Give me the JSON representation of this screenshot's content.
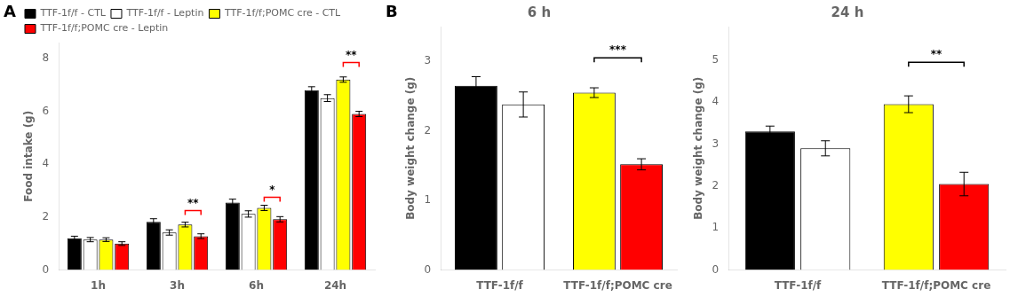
{
  "chart_data": [
    {
      "type": "bar",
      "panel_label": "A",
      "ylabel": "Food intake (g)",
      "categories": [
        "1h",
        "3h",
        "6h",
        "24h"
      ],
      "series": [
        {
          "name": "TTF-1f/f - CTL",
          "color": "#000000",
          "values": [
            1.2,
            1.82,
            2.55,
            6.8
          ],
          "errors": [
            0.08,
            0.12,
            0.13,
            0.13
          ]
        },
        {
          "name": "TTF-1f/f - Leptin",
          "color": "#ffffff",
          "values": [
            1.15,
            1.42,
            2.12,
            6.5
          ],
          "errors": [
            0.08,
            0.1,
            0.12,
            0.13
          ]
        },
        {
          "name": "TTF-1f/f;POMC cre - CTL",
          "color": "#ffff00",
          "values": [
            1.15,
            1.72,
            2.35,
            7.2
          ],
          "errors": [
            0.07,
            0.09,
            0.1,
            0.1
          ]
        },
        {
          "name": "TTF-1f/f;POMC cre - Leptin",
          "color": "#ff0000",
          "values": [
            1.0,
            1.28,
            1.92,
            5.9
          ],
          "errors": [
            0.07,
            0.09,
            0.1,
            0.1
          ]
        }
      ],
      "ylim": [
        0,
        8.6
      ],
      "yticks": [
        0,
        2,
        4,
        6,
        8
      ],
      "grid": false,
      "legend": "upper left",
      "annotations": [
        {
          "text": "**",
          "category": "3h",
          "between": [
            "TTF-1f/f;POMC cre - CTL",
            "TTF-1f/f;POMC cre - Leptin"
          ],
          "y": 2.25,
          "color": "#ff0000"
        },
        {
          "text": "*",
          "category": "6h",
          "between": [
            "TTF-1f/f;POMC cre - CTL",
            "TTF-1f/f;POMC cre - Leptin"
          ],
          "y": 2.75,
          "color": "#ff0000"
        },
        {
          "text": "**",
          "category": "24h",
          "between": [
            "TTF-1f/f;POMC cre - CTL",
            "TTF-1f/f;POMC cre - Leptin"
          ],
          "y": 7.85,
          "color": "#ff0000"
        }
      ]
    },
    {
      "type": "bar",
      "panel_label": "B",
      "title": "6 h",
      "ylabel": "Body weight change (g)",
      "categories": [
        "TTF-1f/f",
        "TTF-1f/f;POMC cre"
      ],
      "series": [
        {
          "colors": [
            "#000000",
            "#ffff00"
          ],
          "values": [
            2.65,
            2.55
          ],
          "errors": [
            0.13,
            0.07
          ]
        },
        {
          "colors": [
            "#ffffff",
            "#ff0000"
          ],
          "values": [
            2.38,
            1.52
          ],
          "errors": [
            0.18,
            0.08
          ]
        }
      ],
      "ylim": [
        0,
        3.5
      ],
      "yticks": [
        0,
        1,
        2,
        3
      ],
      "grid": false,
      "annotations": [
        {
          "text": "***",
          "category": "TTF-1f/f;POMC cre",
          "y": 3.05
        }
      ]
    },
    {
      "type": "bar",
      "title": "24 h",
      "ylabel": "Body weight change (g)",
      "categories": [
        "TTF-1f/f",
        "TTF-1f/f;POMC cre"
      ],
      "series": [
        {
          "colors": [
            "#000000",
            "#ffff00"
          ],
          "values": [
            3.3,
            3.95
          ],
          "errors": [
            0.13,
            0.2
          ]
        },
        {
          "colors": [
            "#ffffff",
            "#ff0000"
          ],
          "values": [
            2.9,
            2.05
          ],
          "errors": [
            0.18,
            0.28
          ]
        }
      ],
      "ylim": [
        0,
        5.8
      ],
      "yticks": [
        0,
        1,
        2,
        3,
        4,
        5
      ],
      "grid": false,
      "annotations": [
        {
          "text": "**",
          "category": "TTF-1f/f;POMC cre",
          "y": 4.95
        }
      ]
    }
  ]
}
